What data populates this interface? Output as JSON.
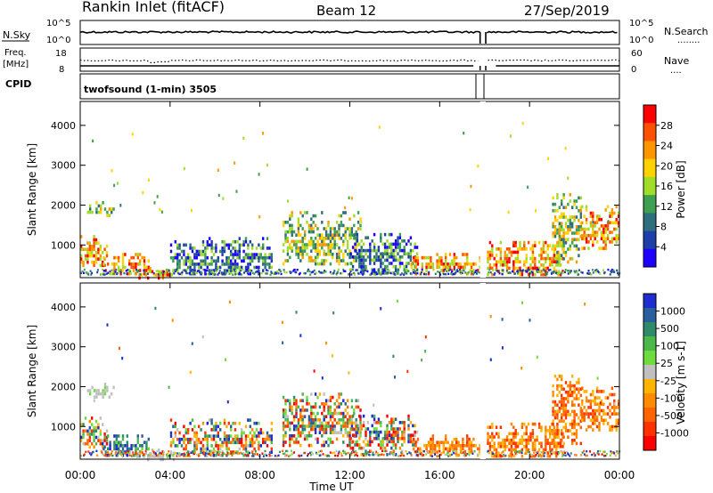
{
  "header": {
    "title": "Rankin Inlet (fitACF)",
    "beam": "Beam 12",
    "date": "27/Sep/2019"
  },
  "small_panels": {
    "nsky_label": "N.Sky",
    "nsearch_label": "N.Search",
    "nsearch_style": "........",
    "n_ticks": [
      "10^5",
      "10^0"
    ],
    "freq_label_1": "Freq.",
    "freq_label_2": "[MHz]",
    "freq_ticks": [
      "18",
      "8"
    ],
    "nave_label": "Nave",
    "nave_style": "....",
    "nave_ticks": [
      "60",
      "0"
    ],
    "cpid_label": "CPID",
    "cpid_text": "twofsound (1-min) 3505"
  },
  "axes": {
    "ylabel": "Slant Range [km]",
    "xlabel": "Time UT",
    "yticks": [
      1000,
      2000,
      3000,
      4000
    ],
    "xticks": [
      "00:00",
      "04:00",
      "08:00",
      "12:00",
      "16:00",
      "20:00",
      "00:00"
    ],
    "ylim": [
      180,
      4600
    ],
    "xlim_hours": [
      0,
      24
    ]
  },
  "power_colorbar": {
    "label": "Power [dB]",
    "ticks": [
      "28",
      "24",
      "20",
      "16",
      "12",
      "8",
      "4"
    ],
    "colors": [
      "#ff0000",
      "#ff5000",
      "#ff9600",
      "#ffd200",
      "#a0dc28",
      "#3ca050",
      "#2f6e7e",
      "#1c3faa",
      "#1e00ff"
    ]
  },
  "velocity_colorbar": {
    "label": "Velocity [m s-1]",
    "ticks": [
      "1000",
      "500",
      "100",
      "25",
      "-25",
      "-100",
      "-500",
      "-1000"
    ],
    "colors": [
      "#1e2cd0",
      "#2b5e9e",
      "#2f8a6a",
      "#4ab84a",
      "#6edc3c",
      "#c0c0c0",
      "#ffb400",
      "#ff8c00",
      "#ff6400",
      "#ff3200",
      "#ff0000"
    ]
  },
  "chart_data": [
    {
      "type": "heatmap",
      "title": "Power",
      "x_unit": "hours UT",
      "y_unit": "km",
      "data_gap_hours": [
        17.8,
        18.05
      ],
      "echo_regions": [
        {
          "t0": 0.0,
          "t1": 1.2,
          "r0": 450,
          "r1": 1250,
          "level": "high"
        },
        {
          "t0": 1.0,
          "t1": 3.0,
          "r0": 300,
          "r1": 800,
          "level": "high"
        },
        {
          "t0": 2.5,
          "t1": 4.2,
          "r0": 180,
          "r1": 450,
          "level": "high"
        },
        {
          "t0": 0.3,
          "t1": 1.5,
          "r0": 1750,
          "r1": 2100,
          "level": "medium"
        },
        {
          "t0": 4.0,
          "t1": 8.5,
          "r0": 300,
          "r1": 1200,
          "level": "low"
        },
        {
          "t0": 9.0,
          "t1": 12.5,
          "r0": 500,
          "r1": 1850,
          "level": "medium"
        },
        {
          "t0": 12.0,
          "t1": 15.0,
          "r0": 300,
          "r1": 1300,
          "level": "low"
        },
        {
          "t0": 14.7,
          "t1": 17.8,
          "r0": 300,
          "r1": 800,
          "level": "high"
        },
        {
          "t0": 18.1,
          "t1": 21.5,
          "r0": 250,
          "r1": 1100,
          "level": "high"
        },
        {
          "t0": 21.0,
          "t1": 22.3,
          "r0": 600,
          "r1": 2300,
          "level": "medium"
        },
        {
          "t0": 22.3,
          "t1": 24.0,
          "r0": 900,
          "r1": 2000,
          "level": "high"
        }
      ]
    },
    {
      "type": "heatmap",
      "title": "Velocity",
      "x_unit": "hours UT",
      "y_unit": "km",
      "data_gap_hours": [
        17.8,
        18.05
      ],
      "echo_regions": [
        {
          "t0": 0.0,
          "t1": 1.2,
          "r0": 450,
          "r1": 1250,
          "level": "mixed"
        },
        {
          "t0": 1.0,
          "t1": 3.0,
          "r0": 300,
          "r1": 800,
          "level": "positive"
        },
        {
          "t0": 2.5,
          "t1": 4.2,
          "r0": 180,
          "r1": 450,
          "level": "ground"
        },
        {
          "t0": 0.3,
          "t1": 1.5,
          "r0": 1750,
          "r1": 2100,
          "level": "ground"
        },
        {
          "t0": 4.0,
          "t1": 8.5,
          "r0": 300,
          "r1": 1200,
          "level": "mixed"
        },
        {
          "t0": 9.0,
          "t1": 12.5,
          "r0": 500,
          "r1": 1850,
          "level": "mixed"
        },
        {
          "t0": 12.0,
          "t1": 15.0,
          "r0": 300,
          "r1": 1300,
          "level": "mixed"
        },
        {
          "t0": 14.7,
          "t1": 17.8,
          "r0": 300,
          "r1": 800,
          "level": "negative"
        },
        {
          "t0": 18.1,
          "t1": 21.5,
          "r0": 250,
          "r1": 1100,
          "level": "negative"
        },
        {
          "t0": 21.0,
          "t1": 22.3,
          "r0": 600,
          "r1": 2300,
          "level": "negative"
        },
        {
          "t0": 22.3,
          "t1": 24.0,
          "r0": 900,
          "r1": 2000,
          "level": "negative"
        }
      ]
    }
  ]
}
